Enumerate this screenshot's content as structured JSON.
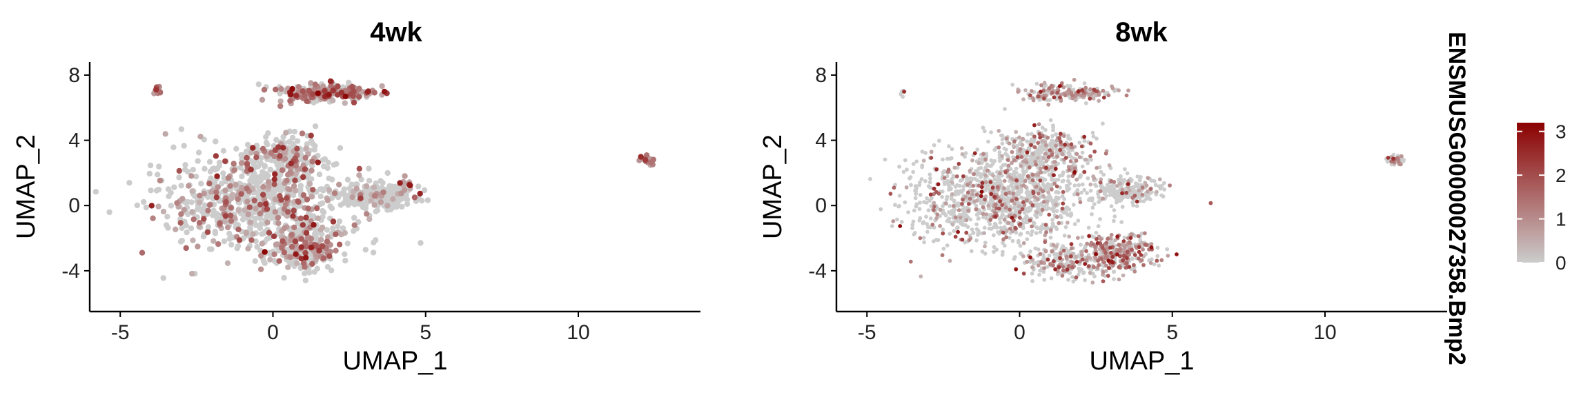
{
  "chart_data": {
    "type": "scatter",
    "description_kind": "UMAP feature plot split by timepoint",
    "feature": "ENSMUSG00000027358.Bmp2",
    "xlabel": "UMAP_1",
    "ylabel": "UMAP_2",
    "xlim": [
      -6,
      14
    ],
    "ylim": [
      -6.5,
      8.8
    ],
    "xticks": [
      -5,
      0,
      5,
      10
    ],
    "yticks": [
      8,
      4,
      0,
      -4
    ],
    "xtick_labels": [
      "-5",
      "0",
      "5",
      "10"
    ],
    "ytick_labels": [
      "8",
      "4",
      "0",
      "-4"
    ],
    "colors": {
      "low": "#cccccc",
      "high": "#8b0000",
      "axis": "#000000"
    },
    "legend": {
      "position": "right",
      "min": 0,
      "max": 3.2,
      "ticks": [
        0,
        1,
        2,
        3
      ],
      "tick_labels": [
        "0",
        "1",
        "2",
        "3"
      ]
    },
    "panels": [
      {
        "title": "4wk",
        "point_size": "large",
        "n_cells": 1800,
        "clusters": [
          {
            "name": "main",
            "cx": -0.5,
            "cy": 0.3,
            "sx": 2.1,
            "sy": 2.0,
            "n": 780,
            "expr_p": 0.28
          },
          {
            "name": "lower-right",
            "cx": 1.1,
            "cy": -2.6,
            "sx": 0.8,
            "sy": 1.1,
            "n": 230,
            "expr_p": 0.45
          },
          {
            "name": "right-arm",
            "cx": 3.4,
            "cy": 0.6,
            "sx": 0.8,
            "sy": 0.5,
            "n": 230,
            "expr_p": 0.12
          },
          {
            "name": "top",
            "cx": 1.4,
            "cy": 6.9,
            "sx": 1.0,
            "sy": 0.35,
            "n": 190,
            "expr_p": 0.6
          },
          {
            "name": "top-right",
            "cx": 2.7,
            "cy": 6.9,
            "sx": 0.5,
            "sy": 0.25,
            "n": 60,
            "expr_p": 0.75
          },
          {
            "name": "upper-middle",
            "cx": 0.5,
            "cy": 3.0,
            "sx": 0.9,
            "sy": 0.7,
            "n": 180,
            "expr_p": 0.3
          },
          {
            "name": "far-right",
            "cx": 12.3,
            "cy": 2.8,
            "sx": 0.18,
            "sy": 0.18,
            "n": 25,
            "expr_p": 0.9
          },
          {
            "name": "far-left",
            "cx": -3.8,
            "cy": 7.0,
            "sx": 0.08,
            "sy": 0.15,
            "n": 12,
            "expr_p": 0.8
          },
          {
            "name": "edge-right",
            "cx": 4.4,
            "cy": 1.3,
            "sx": 0.15,
            "sy": 0.25,
            "n": 10,
            "expr_p": 0.8
          }
        ]
      },
      {
        "title": "8wk",
        "point_size": "small",
        "n_cells": 2600,
        "clusters": [
          {
            "name": "main",
            "cx": -0.6,
            "cy": 0.5,
            "sx": 2.0,
            "sy": 2.0,
            "n": 1200,
            "expr_p": 0.22
          },
          {
            "name": "lower-right",
            "cx": 3.2,
            "cy": -2.9,
            "sx": 0.8,
            "sy": 0.8,
            "n": 320,
            "expr_p": 0.62
          },
          {
            "name": "right-arm",
            "cx": 3.5,
            "cy": 0.9,
            "sx": 0.8,
            "sy": 0.5,
            "n": 220,
            "expr_p": 0.12
          },
          {
            "name": "top",
            "cx": 1.6,
            "cy": 6.9,
            "sx": 1.0,
            "sy": 0.35,
            "n": 180,
            "expr_p": 0.5
          },
          {
            "name": "upper-middle",
            "cx": 0.9,
            "cy": 3.3,
            "sx": 1.0,
            "sy": 0.9,
            "n": 300,
            "expr_p": 0.35
          },
          {
            "name": "lower-middle",
            "cx": 1.4,
            "cy": -3.5,
            "sx": 0.9,
            "sy": 0.7,
            "n": 200,
            "expr_p": 0.35
          },
          {
            "name": "far-right",
            "cx": 12.3,
            "cy": 2.8,
            "sx": 0.2,
            "sy": 0.18,
            "n": 40,
            "expr_p": 0.2
          },
          {
            "name": "far-left",
            "cx": -3.8,
            "cy": 6.9,
            "sx": 0.06,
            "sy": 0.15,
            "n": 8,
            "expr_p": 0.1
          }
        ]
      }
    ]
  }
}
